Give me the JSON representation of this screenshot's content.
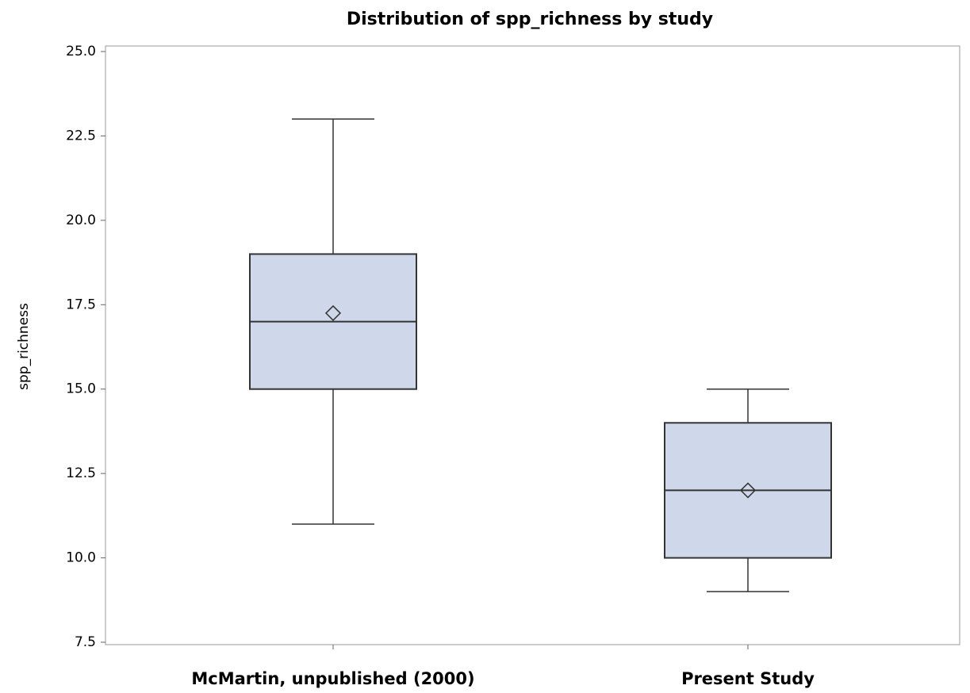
{
  "chart_data": {
    "type": "box",
    "title": "Distribution of spp_richness by study",
    "y_label": "spp_richness",
    "categories": [
      "McMartin, unpublished (2000)",
      "Present Study"
    ],
    "boxes": [
      {
        "min": 11,
        "q1": 15,
        "median": 17,
        "q3": 19,
        "max": 23,
        "mean": 17.25
      },
      {
        "min": 9,
        "q1": 10,
        "median": 12,
        "q3": 14,
        "max": 15,
        "mean": 12
      }
    ],
    "color": "#cfd8ea",
    "ylim": [
      7.5,
      25
    ],
    "yticks": [
      7.5,
      {
        "value": 10,
        "label": "10.0"
      },
      12.5,
      {
        "value": 15,
        "label": "15.0"
      },
      17.5,
      {
        "value": 20,
        "label": "20.0"
      },
      22.5,
      {
        "value": 25,
        "label": "25.0"
      }
    ]
  }
}
